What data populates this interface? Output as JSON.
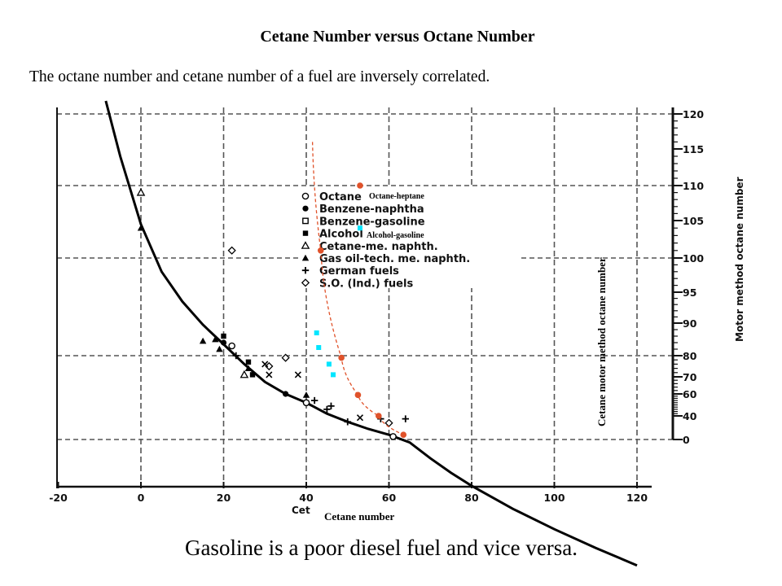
{
  "title": "Cetane Number versus Octane Number",
  "subtitle": "The octane number and cetane number of a fuel are inversely correlated.",
  "footer": "Gasoline is a poor diesel fuel and vice versa.",
  "colors": {
    "axis": "#111111",
    "curve": "#000000",
    "overlay_line": "#e0522a",
    "overlay_points": "#e0522a",
    "alcohol_points": "#00e5ff"
  },
  "chart_data": {
    "type": "scatter",
    "xlabel_original": "Cetane number",
    "xlabel_overlay": "Cetane number",
    "ylabel_original": "Motor method octane number",
    "ylabel_overlay": "Cetane motor method octane number",
    "x_ticks": [
      "-20",
      "0",
      "20",
      "40",
      "60",
      "80",
      "100",
      "120"
    ],
    "y_ticks": [
      "0",
      "40",
      "60",
      "70",
      "80",
      "90",
      "95",
      "100",
      "105",
      "110",
      "115",
      "120"
    ],
    "xlim": [
      -20,
      120
    ],
    "grid": true,
    "legend": {
      "placement": "top-center",
      "entries": [
        {
          "marker": "circle-open",
          "label": "Octane"
        },
        {
          "marker": "dot",
          "label": "Benzene-naphtha"
        },
        {
          "marker": "square-open",
          "label": "Benzene-gasoline"
        },
        {
          "marker": "square",
          "label": "Alcohol"
        },
        {
          "marker": "triangle-open",
          "label": "Cetane-me. naphth."
        },
        {
          "marker": "triangle",
          "label": "Gas oil-tech. me. naphth."
        },
        {
          "marker": "plus",
          "label": "German fuels"
        },
        {
          "marker": "diamond",
          "label": "S.O. (Ind.) fuels"
        }
      ]
    },
    "curve": {
      "x": [
        -8.5,
        -5,
        0,
        5,
        10,
        15,
        20,
        25,
        30,
        35,
        40,
        45,
        50,
        55,
        60,
        65,
        70,
        75,
        80,
        90,
        100,
        110,
        120
      ],
      "y": [
        122,
        114,
        104.5,
        98,
        93.5,
        89.5,
        83.5,
        76,
        67,
        60,
        52,
        42,
        30,
        18,
        8,
        -2,
        -13,
        -23,
        -32,
        -48,
        -62,
        -75,
        -87
      ]
    },
    "series": [
      {
        "name": "Octane-heptane",
        "color": "#e0522a",
        "x": [
          53,
          43.5,
          48.5,
          52.5,
          57.5,
          63.5
        ],
        "y": [
          110,
          101,
          79,
          59,
          40,
          8
        ]
      },
      {
        "name": "Alcohol-gasoline",
        "color": "#00e5ff",
        "x": [
          53,
          42.5,
          43,
          45.5,
          46.5
        ],
        "y": [
          104,
          87,
          82.5,
          76,
          71
        ]
      }
    ],
    "overlay_curve": {
      "x": [
        41.5,
        43.5,
        48.5,
        52.5,
        57.5,
        63.5
      ],
      "y": [
        116,
        101,
        79,
        59,
        40,
        8
      ]
    },
    "scatter_markers": [
      {
        "shape": "triangle-open",
        "x": 0,
        "y": 109
      },
      {
        "shape": "triangle",
        "x": 0,
        "y": 104
      },
      {
        "shape": "diamond",
        "x": 22,
        "y": 101
      },
      {
        "shape": "triangle",
        "x": 15,
        "y": 84.5
      },
      {
        "shape": "triangle",
        "x": 18,
        "y": 85
      },
      {
        "shape": "dot",
        "x": 20,
        "y": 84
      },
      {
        "shape": "square",
        "x": 20,
        "y": 86
      },
      {
        "shape": "circle-open",
        "x": 22,
        "y": 83
      },
      {
        "shape": "triangle",
        "x": 19,
        "y": 82
      },
      {
        "shape": "plus",
        "x": 23,
        "y": 80
      },
      {
        "shape": "square",
        "x": 26,
        "y": 77
      },
      {
        "shape": "triangle",
        "x": 26,
        "y": 74
      },
      {
        "shape": "triangle-open",
        "x": 25,
        "y": 71
      },
      {
        "shape": "square",
        "x": 27,
        "y": 71
      },
      {
        "shape": "diamond",
        "x": 31,
        "y": 75
      },
      {
        "shape": "x",
        "x": 30,
        "y": 76
      },
      {
        "shape": "x",
        "x": 31,
        "y": 71
      },
      {
        "shape": "diamond",
        "x": 35,
        "y": 79
      },
      {
        "shape": "x",
        "x": 38,
        "y": 71
      },
      {
        "shape": "dot",
        "x": 35,
        "y": 60
      },
      {
        "shape": "triangle",
        "x": 40,
        "y": 59
      },
      {
        "shape": "circle-open",
        "x": 40,
        "y": 52
      },
      {
        "shape": "plus",
        "x": 42,
        "y": 54
      },
      {
        "shape": "plus",
        "x": 46,
        "y": 49
      },
      {
        "shape": "plus",
        "x": 45,
        "y": 46
      },
      {
        "shape": "x",
        "x": 53,
        "y": 37
      },
      {
        "shape": "plus",
        "x": 58,
        "y": 35
      },
      {
        "shape": "diamond",
        "x": 60,
        "y": 28
      },
      {
        "shape": "plus",
        "x": 64,
        "y": 35
      },
      {
        "shape": "plus",
        "x": 50,
        "y": 30
      },
      {
        "shape": "circle-open",
        "x": 61,
        "y": 5
      }
    ]
  }
}
